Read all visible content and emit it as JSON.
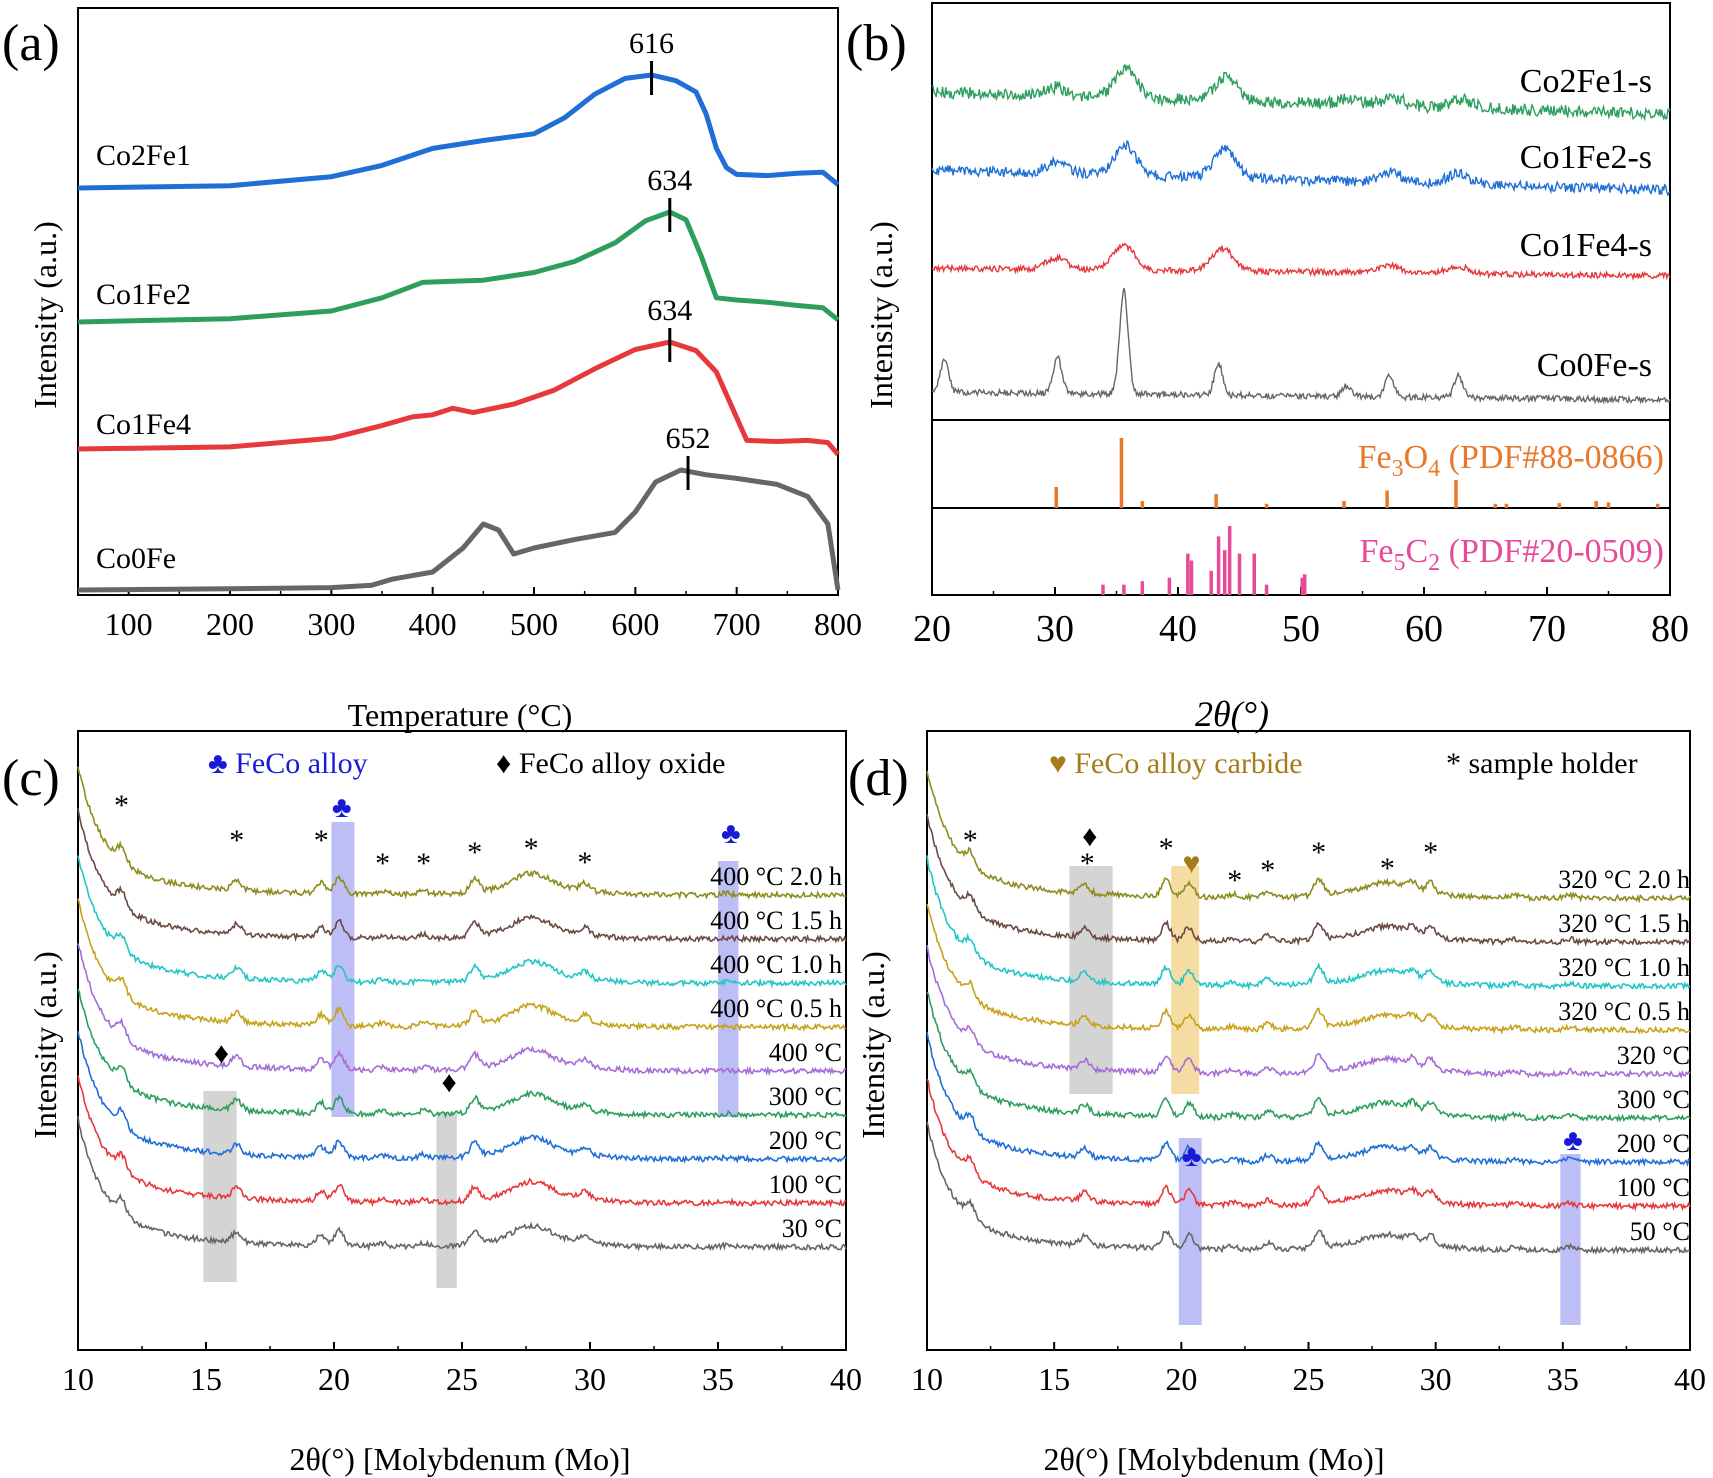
{
  "figure": {
    "panel_labels": [
      "(a)",
      "(b)",
      "(c)",
      "(d)"
    ]
  },
  "chart_data": [
    {
      "panel": "(a)",
      "type": "line",
      "xlabel": "Temperature (°C)",
      "ylabel": "Intensity (a.u.)",
      "xlim": [
        50,
        800
      ],
      "xticks": [
        100,
        200,
        300,
        400,
        500,
        600,
        700,
        800
      ],
      "colors": {
        "Co2Fe1": "#1f6fd6",
        "Co1Fe2": "#2e9e5e",
        "Co1Fe4": "#e5393b",
        "Co0Fe": "#666666"
      },
      "series": [
        {
          "name": "Co2Fe1",
          "peak_label": "616",
          "peak_x": 616,
          "x": [
            50,
            200,
            300,
            350,
            400,
            450,
            500,
            530,
            560,
            590,
            616,
            640,
            660,
            670,
            680,
            690,
            700,
            730,
            760,
            785,
            800
          ],
          "y": [
            0,
            0.02,
            0.1,
            0.2,
            0.35,
            0.42,
            0.48,
            0.62,
            0.83,
            0.97,
            1.0,
            0.95,
            0.85,
            0.65,
            0.35,
            0.18,
            0.12,
            0.11,
            0.13,
            0.14,
            0.03
          ]
        },
        {
          "name": "Co1Fe2",
          "peak_label": "634",
          "peak_x": 634,
          "x": [
            50,
            200,
            300,
            350,
            390,
            420,
            450,
            500,
            540,
            580,
            610,
            634,
            650,
            665,
            680,
            700,
            730,
            760,
            785,
            800
          ],
          "y": [
            0,
            0.03,
            0.1,
            0.22,
            0.36,
            0.37,
            0.38,
            0.45,
            0.55,
            0.72,
            0.92,
            1.0,
            0.93,
            0.6,
            0.22,
            0.2,
            0.18,
            0.15,
            0.13,
            0.02
          ]
        },
        {
          "name": "Co1Fe4",
          "peak_label": "634",
          "peak_x": 634,
          "x": [
            50,
            200,
            300,
            350,
            380,
            400,
            420,
            440,
            480,
            520,
            560,
            600,
            634,
            660,
            680,
            695,
            710,
            740,
            770,
            790,
            800
          ],
          "y": [
            0,
            0.02,
            0.1,
            0.22,
            0.3,
            0.32,
            0.38,
            0.34,
            0.42,
            0.55,
            0.75,
            0.93,
            1.0,
            0.92,
            0.72,
            0.4,
            0.08,
            0.07,
            0.08,
            0.06,
            -0.05
          ]
        },
        {
          "name": "Co0Fe",
          "peak_label": "652",
          "peak_x": 652,
          "x": [
            50,
            200,
            300,
            340,
            360,
            400,
            430,
            450,
            465,
            480,
            500,
            540,
            580,
            600,
            620,
            645,
            670,
            700,
            740,
            770,
            790,
            800
          ],
          "y": [
            0,
            0.01,
            0.02,
            0.04,
            0.09,
            0.15,
            0.35,
            0.55,
            0.5,
            0.3,
            0.35,
            0.42,
            0.48,
            0.65,
            0.9,
            1.0,
            0.96,
            0.93,
            0.88,
            0.78,
            0.55,
            0.0
          ]
        }
      ]
    },
    {
      "panel": "(b)",
      "type": "line",
      "xlabel": "2θ(°)",
      "ylabel": "Intensity (a.u.)",
      "xlim": [
        20,
        80
      ],
      "xticks": [
        20,
        30,
        40,
        50,
        60,
        70,
        80
      ],
      "colors": {
        "Co2Fe1-s": "#2e9e5e",
        "Co1Fe2-s": "#1f6fd6",
        "Co1Fe4-s": "#e5393b",
        "Co0Fe-s": "#666666"
      },
      "series": [
        {
          "name": "Co2Fe1-s",
          "peaks": [
            [
              30.1,
              0.3
            ],
            [
              35.8,
              1.0
            ],
            [
              43.9,
              0.85
            ],
            [
              54,
              0.2
            ],
            [
              57.5,
              0.3
            ],
            [
              63,
              0.3
            ]
          ]
        },
        {
          "name": "Co1Fe2-s",
          "peaks": [
            [
              30.1,
              0.35
            ],
            [
              35.7,
              1.0
            ],
            [
              43.8,
              0.95
            ],
            [
              57.3,
              0.35
            ],
            [
              62.8,
              0.35
            ]
          ]
        },
        {
          "name": "Co1Fe4-s",
          "peaks": [
            [
              30.1,
              0.45
            ],
            [
              35.6,
              1.0
            ],
            [
              43.6,
              0.9
            ],
            [
              57.2,
              0.3
            ],
            [
              62.7,
              0.3
            ]
          ]
        },
        {
          "name": "Co0Fe-s",
          "peaks": [
            [
              21,
              0.3
            ],
            [
              30.2,
              0.35
            ],
            [
              35.6,
              1.0
            ],
            [
              43.3,
              0.3
            ],
            [
              53.7,
              0.1
            ],
            [
              57.2,
              0.2
            ],
            [
              62.8,
              0.22
            ]
          ]
        }
      ],
      "references": [
        {
          "name": "Fe₃O₄ (PDF#88-0866)",
          "label_main": "Fe",
          "label_sub1": "3",
          "label_mid": "O",
          "label_sub2": "4",
          "label_tail": " (PDF#88-0866)",
          "color": "#e8782a",
          "lines": [
            [
              30.1,
              0.3
            ],
            [
              35.4,
              1.0
            ],
            [
              37.1,
              0.1
            ],
            [
              43.1,
              0.2
            ],
            [
              47.2,
              0.06
            ],
            [
              53.5,
              0.1
            ],
            [
              57,
              0.25
            ],
            [
              62.6,
              0.4
            ],
            [
              65.8,
              0.06
            ],
            [
              66.7,
              0.06
            ],
            [
              71,
              0.07
            ],
            [
              74,
              0.1
            ],
            [
              75,
              0.08
            ],
            [
              79,
              0.06
            ]
          ]
        },
        {
          "name": "Fe₅C₂ (PDF#20-0509)",
          "label_main": "Fe",
          "label_sub1": "5",
          "label_mid": "C",
          "label_sub2": "2",
          "label_tail": " (PDF#20-0509)",
          "color": "#e84a9a",
          "lines": [
            [
              33.9,
              0.15
            ],
            [
              35.6,
              0.15
            ],
            [
              37.1,
              0.2
            ],
            [
              39.3,
              0.25
            ],
            [
              40.8,
              0.6
            ],
            [
              41.1,
              0.5
            ],
            [
              42.7,
              0.35
            ],
            [
              43.3,
              0.85
            ],
            [
              43.8,
              0.65
            ],
            [
              44.2,
              1.0
            ],
            [
              45.0,
              0.6
            ],
            [
              46.2,
              0.6
            ],
            [
              47.2,
              0.15
            ],
            [
              50.1,
              0.25
            ],
            [
              50.3,
              0.3
            ]
          ]
        }
      ]
    },
    {
      "panel": "(c)",
      "type": "line",
      "xlabel": "2θ(°) [Molybdenum (Mo)]",
      "ylabel": "Intensity (a.u.)",
      "xlim": [
        10,
        40
      ],
      "xticks": [
        10,
        15,
        20,
        25,
        30,
        35,
        40
      ],
      "legend": [
        {
          "symbol": "♣",
          "text": "FeCo alloy",
          "color": "#1a1ad6"
        },
        {
          "symbol": "♦",
          "text": "FeCo alloy oxide",
          "color": "#000000"
        }
      ],
      "series": [
        {
          "name": "400 °C 2.0 h",
          "color": "#8d8d1f"
        },
        {
          "name": "400 °C 1.5 h",
          "color": "#6b4a43"
        },
        {
          "name": "400 °C 1.0 h",
          "color": "#22c6c6"
        },
        {
          "name": "400 °C 0.5 h",
          "color": "#c7a21a"
        },
        {
          "name": "400 °C",
          "color": "#a66dd6"
        },
        {
          "name": "300 °C",
          "color": "#2e9e5e"
        },
        {
          "name": "200 °C",
          "color": "#1f6fd6"
        },
        {
          "name": "100 °C",
          "color": "#e5393b"
        },
        {
          "name": "30 °C",
          "color": "#666666"
        }
      ],
      "peaks": [
        [
          11.7,
          0.5
        ],
        [
          16.2,
          0.35
        ],
        [
          19.5,
          0.35
        ],
        [
          20.2,
          0.55
        ],
        [
          21.9,
          0.1
        ],
        [
          23.5,
          0.12
        ],
        [
          25.5,
          0.45
        ],
        [
          27.7,
          0.45
        ],
        [
          29.8,
          0.25
        ],
        [
          35.3,
          0.05
        ]
      ],
      "markers": [
        {
          "symbol": "*",
          "x": 11.7
        },
        {
          "symbol": "*",
          "x": 16.2
        },
        {
          "symbol": "*",
          "x": 19.5
        },
        {
          "symbol": "♣",
          "x": 20.3
        },
        {
          "symbol": "*",
          "x": 21.9
        },
        {
          "symbol": "*",
          "x": 23.5
        },
        {
          "symbol": "*",
          "x": 25.5
        },
        {
          "symbol": "*",
          "x": 27.7
        },
        {
          "symbol": "*",
          "x": 29.8
        },
        {
          "symbol": "♣",
          "x": 35.5
        },
        {
          "symbol": "♦",
          "x": 15.6
        },
        {
          "symbol": "♦",
          "x": 24.5
        }
      ],
      "bands": [
        {
          "x": [
            19.9,
            20.8
          ],
          "color": "blue"
        },
        {
          "x": [
            35.0,
            35.8
          ],
          "color": "blue"
        },
        {
          "x": [
            14.9,
            16.2
          ],
          "color": "grey"
        },
        {
          "x": [
            24.0,
            24.8
          ],
          "color": "grey"
        }
      ]
    },
    {
      "panel": "(d)",
      "type": "line",
      "xlabel": "2θ(°) [Molybdenum (Mo)]",
      "ylabel": "Intensity (a.u.)",
      "xlim": [
        10,
        40
      ],
      "xticks": [
        10,
        15,
        20,
        25,
        30,
        35,
        40
      ],
      "legend": [
        {
          "symbol": "♥",
          "text": "FeCo alloy carbide",
          "color": "#a67c1a"
        },
        {
          "symbol": "*",
          "text": "sample holder",
          "color": "#000000"
        }
      ],
      "series": [
        {
          "name": "320 °C 2.0 h",
          "color": "#8d8d1f"
        },
        {
          "name": "320 °C 1.5 h",
          "color": "#6b4a43"
        },
        {
          "name": "320 °C 1.0 h",
          "color": "#22c6c6"
        },
        {
          "name": "320 °C 0.5 h",
          "color": "#c7a21a"
        },
        {
          "name": "320 °C",
          "color": "#a66dd6"
        },
        {
          "name": "300 °C",
          "color": "#2e9e5e"
        },
        {
          "name": "200 °C",
          "color": "#1f6fd6"
        },
        {
          "name": "100 °C",
          "color": "#e5393b"
        },
        {
          "name": "50 °C",
          "color": "#666666"
        }
      ],
      "peaks": [
        [
          11.7,
          0.45
        ],
        [
          16.2,
          0.3
        ],
        [
          19.4,
          0.55
        ],
        [
          20.3,
          0.45
        ],
        [
          22,
          0.1
        ],
        [
          23.4,
          0.2
        ],
        [
          25.4,
          0.55
        ],
        [
          28.1,
          0.25
        ],
        [
          29.1,
          0.25
        ],
        [
          29.8,
          0.35
        ],
        [
          33.1,
          0.1
        ],
        [
          35.3,
          0.1
        ]
      ],
      "markers": [
        {
          "symbol": "*",
          "x": 11.7
        },
        {
          "symbol": "♦",
          "x": 16.4
        },
        {
          "symbol": "*",
          "x": 16.3
        },
        {
          "symbol": "*",
          "x": 19.4
        },
        {
          "symbol": "♥",
          "x": 20.4
        },
        {
          "symbol": "*",
          "x": 22.1
        },
        {
          "symbol": "*",
          "x": 23.4
        },
        {
          "symbol": "*",
          "x": 25.4
        },
        {
          "symbol": "*",
          "x": 28.1
        },
        {
          "symbol": "*",
          "x": 29.8
        },
        {
          "symbol": "♣",
          "x": 20.4
        },
        {
          "symbol": "♣",
          "x": 35.4
        }
      ],
      "bands": [
        {
          "x": [
            15.6,
            17.3
          ],
          "color": "grey"
        },
        {
          "x": [
            19.6,
            20.7
          ],
          "color": "gold"
        },
        {
          "x": [
            19.9,
            20.8
          ],
          "color": "blue"
        },
        {
          "x": [
            34.9,
            35.7
          ],
          "color": "blue"
        }
      ]
    }
  ]
}
